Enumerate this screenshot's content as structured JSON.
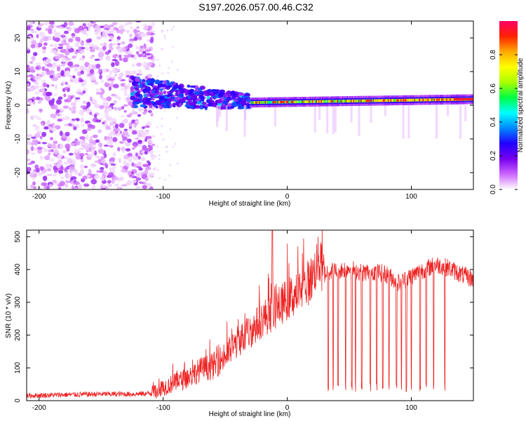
{
  "page": {
    "title": "S197.2026.057.00.46.C32"
  },
  "chart_data": [
    {
      "id": "spectrogram",
      "type": "heatmap",
      "title": "S197.2026.057.00.46.C32",
      "xlabel": "Height of straight line (km)",
      "ylabel": "Frequency (Hz)",
      "xlim": [
        -210,
        150
      ],
      "ylim": [
        -25,
        25
      ],
      "xticks": [
        -200,
        -100,
        0,
        100
      ],
      "yticks": [
        -20,
        -10,
        0,
        10,
        20
      ],
      "colorbar": {
        "label": "Normalized spectral amplitude",
        "range": [
          0,
          1
        ],
        "ticks": [
          "0.0",
          "0.2",
          "0.4",
          "0.6",
          "0.8"
        ],
        "colors": [
          "#ffffff",
          "#cc66ff",
          "#7700ee",
          "#2200ff",
          "#0088ff",
          "#00ffff",
          "#00ff44",
          "#aaff00",
          "#ffff00",
          "#ffaa00",
          "#ff2200",
          "#ff0066"
        ]
      },
      "features": {
        "noise_region_x": [
          -210,
          -108
        ],
        "noise_frequency_range": [
          -25,
          25
        ],
        "transition_x": [
          -125,
          -30
        ],
        "transition_frequency_range": [
          -6,
          10
        ],
        "carrier_x": [
          -30,
          150
        ],
        "carrier_frequency_start": 0.8,
        "carrier_frequency_end": 1.8,
        "peak_amplitude": 0.95
      }
    },
    {
      "id": "snr",
      "type": "line",
      "xlabel": "Height of straight line (km)",
      "ylabel": "SNR (10 * v/v)",
      "xlim": [
        -210,
        150
      ],
      "ylim": [
        0,
        520
      ],
      "xticks": [
        -200,
        -100,
        0,
        100
      ],
      "yticks": [
        0,
        100,
        200,
        300,
        400,
        500
      ],
      "series": [
        {
          "name": "SNR",
          "color": "#ee2222",
          "x": [
            -210,
            -180,
            -150,
            -125,
            -110,
            -100,
            -90,
            -80,
            -70,
            -60,
            -50,
            -40,
            -30,
            -20,
            -10,
            0,
            10,
            20,
            25,
            30,
            33,
            40,
            50,
            60,
            70,
            80,
            90,
            100,
            110,
            120,
            130,
            140,
            150
          ],
          "values": [
            15,
            18,
            20,
            20,
            22,
            40,
            55,
            70,
            95,
            105,
            135,
            180,
            210,
            250,
            275,
            310,
            330,
            375,
            430,
            385,
            395,
            395,
            405,
            390,
            395,
            385,
            360,
            380,
            400,
            415,
            405,
            385,
            370
          ],
          "dropouts_x": [
            33,
            37,
            41,
            47,
            52,
            55,
            60,
            67,
            72,
            77,
            82,
            88,
            92,
            96,
            100,
            107,
            112,
            118,
            127
          ],
          "spikes": [
            {
              "x": -12,
              "value": 520
            }
          ]
        }
      ]
    }
  ]
}
